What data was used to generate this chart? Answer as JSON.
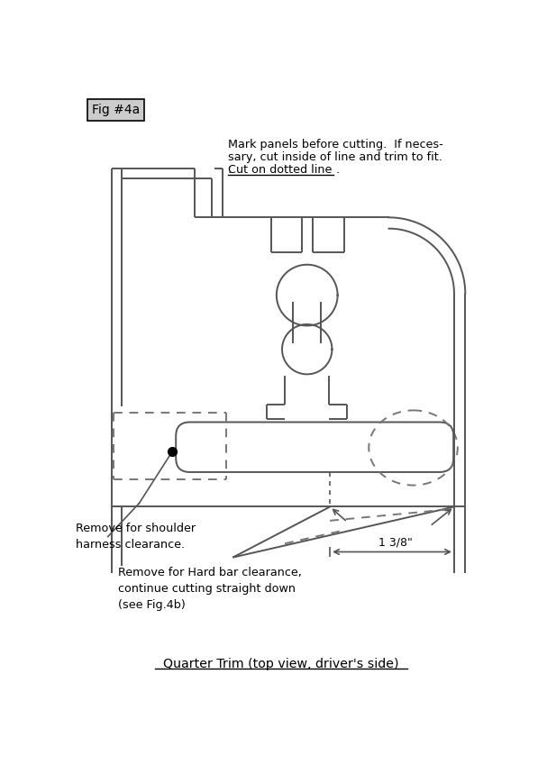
{
  "fig_label": "Fig #4a",
  "title_text": "Quarter Trim (top view, driver's side)",
  "instr_line1": "Mark panels before cutting.  If neces-",
  "instr_line2": "sary, cut inside of line and trim to fit.",
  "instr_line3": "Cut on dotted line",
  "instr_line3_period": ".",
  "label_shoulder": "Remove for shoulder\nharness clearance.",
  "label_hardbar": "Remove for Hard bar clearance,\ncontinue cutting straight down\n(see Fig.4b)",
  "label_dimension": "1 3/8\"",
  "line_color": "#555555",
  "bg_color": "#ffffff",
  "dashed_color": "#777777"
}
